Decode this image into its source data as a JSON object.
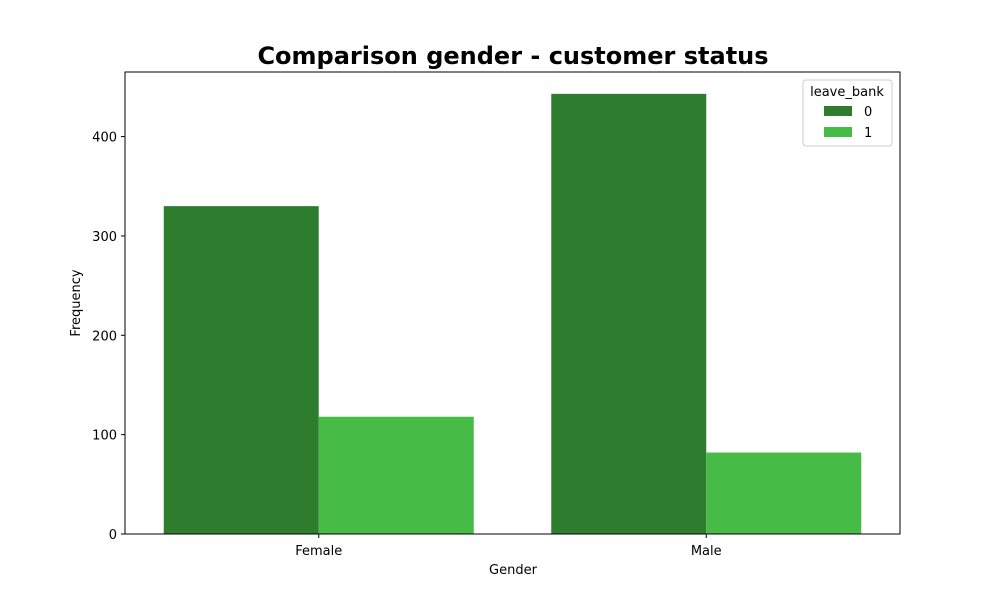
{
  "chart_data": {
    "type": "bar",
    "title": "Comparison gender - customer status",
    "xlabel": "Gender",
    "ylabel": "Frequency",
    "categories": [
      "Female",
      "Male"
    ],
    "series": [
      {
        "name": "0",
        "values": [
          330,
          443
        ],
        "color": "#2e7d2e"
      },
      {
        "name": "1",
        "values": [
          118,
          82
        ],
        "color": "#46bb46"
      }
    ],
    "ylim": [
      0,
      465
    ],
    "yticks": [
      0,
      100,
      200,
      300,
      400
    ],
    "legend": {
      "title": "leave_bank",
      "placement": "top-right"
    },
    "grid": false
  }
}
